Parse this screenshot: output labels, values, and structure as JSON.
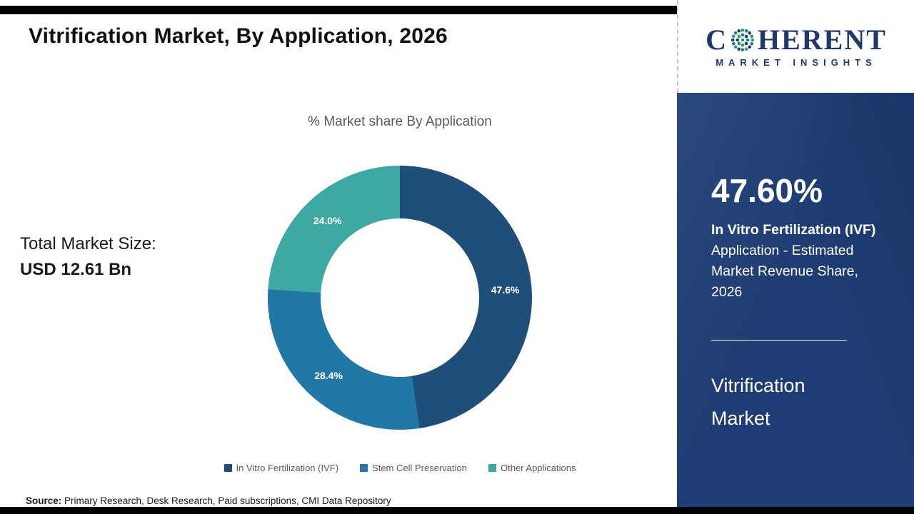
{
  "title": "Vitrification Market, By Application, 2026",
  "chart_data": {
    "type": "pie",
    "subtype": "donut",
    "title": "% Market share By Application",
    "categories": [
      "In Vitro Fertilization (IVF)",
      "Stem Cell Preservation",
      "Other Applications"
    ],
    "values": [
      47.6,
      28.4,
      24.0
    ],
    "colors": [
      "#1f4e79",
      "#2177a6",
      "#3ea8a3"
    ],
    "start_angle_deg": 0,
    "direction": "clockwise",
    "legend_position": "bottom"
  },
  "total_market": {
    "label": "Total Market Size:",
    "value": "USD 12.61 Bn"
  },
  "side_panel": {
    "highlight_value": "47.60%",
    "highlight_bold": "In Vitro Fertilization (IVF)",
    "highlight_rest": "Application - Estimated Market Revenue Share, 2026",
    "title_line1": "Vitrification",
    "title_line2": "Market",
    "background": "#1f3d74"
  },
  "logo": {
    "letter_c": "C",
    "letters_rest": "HERENT",
    "subtext": "MARKET INSIGHTS"
  },
  "source": {
    "label": "Source:",
    "text": " Primary Research, Desk Research, Paid subscriptions, CMI Data Repository"
  }
}
